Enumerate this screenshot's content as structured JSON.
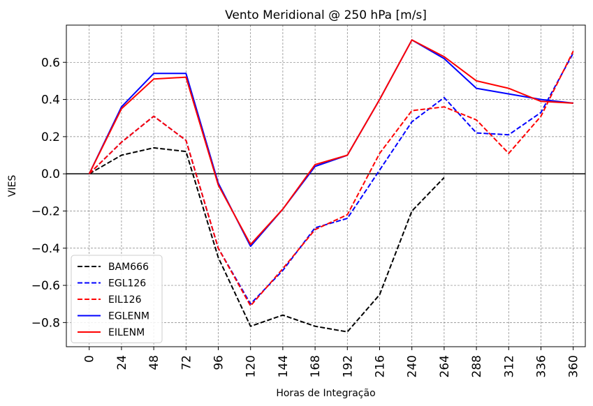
{
  "chart_data": {
    "type": "line",
    "title": "Vento Meridional @ 250 hPa [m/s]",
    "xlabel": "Horas de Integração",
    "ylabel": "VIES",
    "x": [
      0,
      24,
      48,
      72,
      96,
      120,
      144,
      168,
      192,
      216,
      240,
      264,
      288,
      312,
      336,
      360
    ],
    "xticks": [
      "0",
      "24",
      "48",
      "72",
      "96",
      "120",
      "144",
      "168",
      "192",
      "216",
      "240",
      "264",
      "288",
      "312",
      "336",
      "360"
    ],
    "xlim": [
      -17,
      369
    ],
    "ylim": [
      -0.93,
      0.8
    ],
    "yticks": [
      -0.8,
      -0.6,
      -0.4,
      -0.2,
      0.0,
      0.2,
      0.4,
      0.6
    ],
    "ytick_labels": [
      "−0.8",
      "−0.6",
      "−0.4",
      "−0.2",
      "0.0",
      "0.2",
      "0.4",
      "0.6"
    ],
    "grid": true,
    "zero_line": true,
    "legend_position": "lower-left",
    "series": [
      {
        "name": "BAM666",
        "color": "#000000",
        "style": "dashed",
        "x": [
          0,
          24,
          48,
          72,
          96,
          120,
          144,
          168,
          192,
          216,
          240,
          264
        ],
        "values": [
          0.0,
          0.1,
          0.14,
          0.12,
          -0.45,
          -0.82,
          -0.76,
          -0.82,
          -0.85,
          -0.65,
          -0.2,
          -0.02
        ]
      },
      {
        "name": "EGL126",
        "color": "#0000ff",
        "style": "dashed",
        "x": [
          0,
          24,
          48,
          72,
          96,
          120,
          144,
          168,
          192,
          216,
          240,
          264,
          288,
          312,
          336,
          360
        ],
        "values": [
          0.0,
          0.17,
          0.31,
          0.18,
          -0.4,
          -0.7,
          -0.52,
          -0.29,
          -0.24,
          0.02,
          0.28,
          0.41,
          0.22,
          0.21,
          0.33,
          0.65
        ]
      },
      {
        "name": "EIL126",
        "color": "#ff0000",
        "style": "dashed",
        "x": [
          0,
          24,
          48,
          72,
          96,
          120,
          144,
          168,
          192,
          216,
          240,
          264,
          288,
          312,
          336,
          360
        ],
        "values": [
          0.0,
          0.17,
          0.31,
          0.18,
          -0.4,
          -0.71,
          -0.51,
          -0.3,
          -0.22,
          0.11,
          0.34,
          0.36,
          0.29,
          0.11,
          0.31,
          0.66
        ]
      },
      {
        "name": "EGLENM",
        "color": "#0000ff",
        "style": "solid",
        "x": [
          0,
          24,
          48,
          72,
          96,
          120,
          144,
          168,
          192,
          216,
          240,
          264,
          288,
          312,
          336,
          360
        ],
        "values": [
          0.0,
          0.36,
          0.54,
          0.54,
          -0.05,
          -0.39,
          -0.19,
          0.04,
          0.1,
          0.4,
          0.72,
          0.62,
          0.46,
          0.43,
          0.4,
          0.38
        ]
      },
      {
        "name": "EILENM",
        "color": "#ff0000",
        "style": "solid",
        "x": [
          0,
          24,
          48,
          72,
          96,
          120,
          144,
          168,
          192,
          216,
          240,
          264,
          288,
          312,
          336,
          360
        ],
        "values": [
          0.0,
          0.35,
          0.51,
          0.52,
          -0.06,
          -0.38,
          -0.19,
          0.05,
          0.1,
          0.4,
          0.72,
          0.63,
          0.5,
          0.46,
          0.39,
          0.38
        ]
      }
    ]
  }
}
